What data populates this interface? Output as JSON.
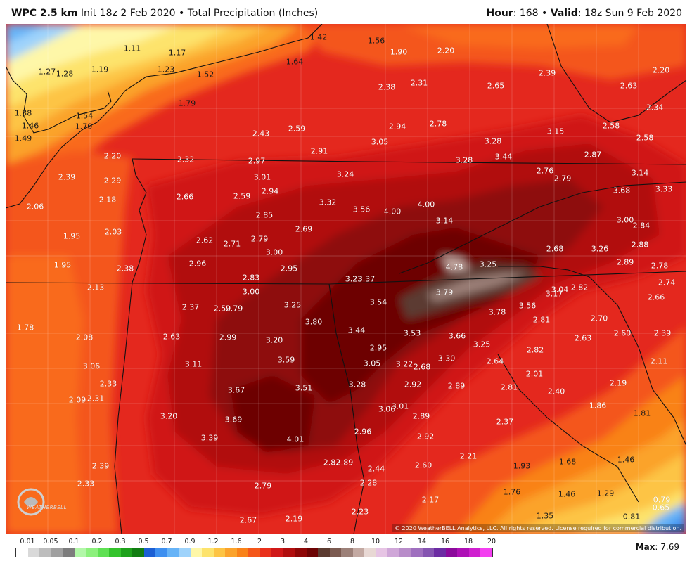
{
  "header": {
    "model": "WPC 2.5 km",
    "init": "Init 18z 2 Feb 2020",
    "bullet": "•",
    "product": "Total Precipitation (Inches)",
    "hour_label": "Hour",
    "hour_value": ": 168",
    "valid_label": "Valid",
    "valid_value": ": 18z Sun 9 Feb 2020"
  },
  "copyright": "© 2020 WeatherBELL Analytics, LLC. All rights reserved. License required for commercial distribution.",
  "logo_text": "WEATHERBELL",
  "max_label": "Max",
  "max_value": ": 7.69",
  "colorbar": {
    "labels": [
      "0.01",
      "0.05",
      "0.1",
      "0.2",
      "0.3",
      "0.5",
      "0.7",
      "0.9",
      "1.2",
      "1.6",
      "2",
      "3",
      "4",
      "6",
      "8",
      "10",
      "12",
      "14",
      "16",
      "18",
      "20"
    ],
    "colors": [
      "#ffffff",
      "#d9d9d9",
      "#bdbdbd",
      "#a0a0a0",
      "#7d7d7d",
      "#b2f7a8",
      "#8cf07c",
      "#5fe053",
      "#34c32c",
      "#1ea11b",
      "#117d12",
      "#1b5fd4",
      "#3d8ff0",
      "#66b3f7",
      "#9fd3fb",
      "#fef7a8",
      "#fde36c",
      "#fdc444",
      "#fba32c",
      "#f98219",
      "#f4571a",
      "#e9301b",
      "#d01818",
      "#b10e0e",
      "#8e0707",
      "#6d0404",
      "#5c3b30",
      "#7b5a50",
      "#9c8078",
      "#c3a9a2",
      "#e8d8d4",
      "#e6c4e4",
      "#cfa6d8",
      "#b88cc9",
      "#9f6fbf",
      "#8554b1",
      "#6c2ca3",
      "#8c0a9c",
      "#ae10b6",
      "#cf1fcf",
      "#f33ff0"
    ]
  },
  "precip_values": [
    {
      "v": "1.42",
      "dark": true
    },
    {
      "v": "1.56",
      "dark": true
    },
    {
      "v": "1.90"
    },
    {
      "v": "2.20"
    },
    {
      "v": "2.20"
    },
    {
      "v": "1.11",
      "dark": true
    },
    {
      "v": "1.17",
      "dark": true
    },
    {
      "v": "1.27",
      "dark": true
    },
    {
      "v": "1.28",
      "dark": true
    },
    {
      "v": "1.19",
      "dark": true
    },
    {
      "v": "1.23",
      "dark": true
    },
    {
      "v": "1.52",
      "dark": true
    },
    {
      "v": "1.64",
      "dark": true
    },
    {
      "v": "2.39"
    },
    {
      "v": "2.38"
    },
    {
      "v": "2.31"
    },
    {
      "v": "2.65"
    },
    {
      "v": "2.63"
    },
    {
      "v": "1.79",
      "dark": true
    },
    {
      "v": "1.38",
      "dark": true
    },
    {
      "v": "1.54",
      "dark": true
    },
    {
      "v": "1.46",
      "dark": true
    },
    {
      "v": "1.70",
      "dark": true
    },
    {
      "v": "1.49",
      "dark": true
    },
    {
      "v": "2.34"
    },
    {
      "v": "2.94"
    },
    {
      "v": "2.78"
    },
    {
      "v": "2.43"
    },
    {
      "v": "2.59"
    },
    {
      "v": "3.15"
    },
    {
      "v": "2.58"
    },
    {
      "v": "2.58"
    },
    {
      "v": "3.05"
    },
    {
      "v": "2.91"
    },
    {
      "v": "3.28"
    },
    {
      "v": "2.20"
    },
    {
      "v": "2.32"
    },
    {
      "v": "2.97"
    },
    {
      "v": "3.28"
    },
    {
      "v": "3.44"
    },
    {
      "v": "2.87"
    },
    {
      "v": "3.01"
    },
    {
      "v": "3.24"
    },
    {
      "v": "2.76"
    },
    {
      "v": "2.79"
    },
    {
      "v": "3.14"
    },
    {
      "v": "2.39"
    },
    {
      "v": "2.29"
    },
    {
      "v": "2.94"
    },
    {
      "v": "3.68"
    },
    {
      "v": "3.33"
    },
    {
      "v": "2.66"
    },
    {
      "v": "2.59"
    },
    {
      "v": "2.18"
    },
    {
      "v": "3.32"
    },
    {
      "v": "3.56"
    },
    {
      "v": "4.00"
    },
    {
      "v": "4.00"
    },
    {
      "v": "2.06"
    },
    {
      "v": "2.85"
    },
    {
      "v": "3.14"
    },
    {
      "v": "3.00"
    },
    {
      "v": "2.84"
    },
    {
      "v": "2.69"
    },
    {
      "v": "1.95"
    },
    {
      "v": "2.03"
    },
    {
      "v": "2.62"
    },
    {
      "v": "2.71"
    },
    {
      "v": "2.79"
    },
    {
      "v": "2.88"
    },
    {
      "v": "2.68"
    },
    {
      "v": "3.26"
    },
    {
      "v": "3.00"
    },
    {
      "v": "2.96"
    },
    {
      "v": "4.78"
    },
    {
      "v": "3.25"
    },
    {
      "v": "2.89"
    },
    {
      "v": "1.95"
    },
    {
      "v": "2.38"
    },
    {
      "v": "2.78"
    },
    {
      "v": "2.95"
    },
    {
      "v": "2.83"
    },
    {
      "v": "3.23"
    },
    {
      "v": "3.37"
    },
    {
      "v": "2.74"
    },
    {
      "v": "2.13"
    },
    {
      "v": "3.00"
    },
    {
      "v": "3.79"
    },
    {
      "v": "3.04"
    },
    {
      "v": "2.82"
    },
    {
      "v": "3.17"
    },
    {
      "v": "2.66"
    },
    {
      "v": "3.54"
    },
    {
      "v": "2.37"
    },
    {
      "v": "2.59"
    },
    {
      "v": "2.79"
    },
    {
      "v": "3.25"
    },
    {
      "v": "3.56"
    },
    {
      "v": "3.78"
    },
    {
      "v": "3.80"
    },
    {
      "v": "2.81"
    },
    {
      "v": "2.70"
    },
    {
      "v": "1.78"
    },
    {
      "v": "3.44"
    },
    {
      "v": "3.53"
    },
    {
      "v": "2.60"
    },
    {
      "v": "2.39"
    },
    {
      "v": "2.08"
    },
    {
      "v": "2.63"
    },
    {
      "v": "2.99"
    },
    {
      "v": "3.20"
    },
    {
      "v": "3.66"
    },
    {
      "v": "2.63"
    },
    {
      "v": "3.25"
    },
    {
      "v": "2.95"
    },
    {
      "v": "2.82"
    },
    {
      "v": "3.11"
    },
    {
      "v": "3.59"
    },
    {
      "v": "3.30"
    },
    {
      "v": "2.11"
    },
    {
      "v": "3.06"
    },
    {
      "v": "3.05"
    },
    {
      "v": "3.22"
    },
    {
      "v": "2.68"
    },
    {
      "v": "2.64"
    },
    {
      "v": "2.01"
    },
    {
      "v": "2.33"
    },
    {
      "v": "3.67"
    },
    {
      "v": "3.51"
    },
    {
      "v": "3.28"
    },
    {
      "v": "2.92"
    },
    {
      "v": "2.89"
    },
    {
      "v": "2.81"
    },
    {
      "v": "2.19"
    },
    {
      "v": "2.09"
    },
    {
      "v": "2.31"
    },
    {
      "v": "2.40"
    },
    {
      "v": "1.86"
    },
    {
      "v": "3.06"
    },
    {
      "v": "3.01"
    },
    {
      "v": "3.20"
    },
    {
      "v": "3.69"
    },
    {
      "v": "2.89"
    },
    {
      "v": "1.81",
      "dark": true
    },
    {
      "v": "2.37"
    },
    {
      "v": "2.96"
    },
    {
      "v": "3.39"
    },
    {
      "v": "4.01"
    },
    {
      "v": "2.92"
    },
    {
      "v": "2.21"
    },
    {
      "v": "1.46",
      "dark": true
    },
    {
      "v": "2.39"
    },
    {
      "v": "2.82"
    },
    {
      "v": "2.89"
    },
    {
      "v": "2.60"
    },
    {
      "v": "1.93",
      "dark": true
    },
    {
      "v": "1.68",
      "dark": true
    },
    {
      "v": "2.44"
    },
    {
      "v": "2.33"
    },
    {
      "v": "2.79"
    },
    {
      "v": "2.28"
    },
    {
      "v": "1.76",
      "dark": true
    },
    {
      "v": "1.46",
      "dark": true
    },
    {
      "v": "1.29",
      "dark": true
    },
    {
      "v": "0.79"
    },
    {
      "v": "2.17"
    },
    {
      "v": "2.23"
    },
    {
      "v": "0.65"
    },
    {
      "v": "2.67"
    },
    {
      "v": "2.19"
    },
    {
      "v": "1.35",
      "dark": true
    },
    {
      "v": "0.81",
      "dark": true
    }
  ]
}
